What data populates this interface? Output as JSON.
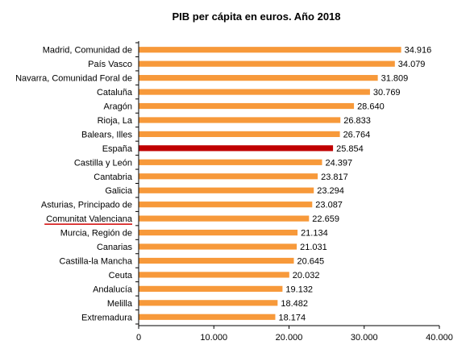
{
  "chart_data": {
    "type": "bar",
    "orientation": "horizontal",
    "title": "PIB per cápita en euros. Año 2018",
    "xlabel": "",
    "ylabel": "",
    "xlim": [
      0,
      40000
    ],
    "ticks": [
      {
        "value": 0,
        "label": "0"
      },
      {
        "value": 10000,
        "label": "10.000"
      },
      {
        "value": 20000,
        "label": "20.000"
      },
      {
        "value": 30000,
        "label": "30.000"
      },
      {
        "value": 40000,
        "label": "40.000"
      }
    ],
    "grid": false,
    "legend": "none",
    "colors": {
      "bar": "#F7993A",
      "highlight_bar": "#C00000",
      "underline": "#D00000",
      "axis": "#000000"
    },
    "highlight_category": "España",
    "underlined_category": "Comunitat Valenciana",
    "categories": [
      "Madrid, Comunidad de",
      "País Vasco",
      "Navarra, Comunidad Foral de",
      "Cataluña",
      "Aragón",
      "Rioja, La",
      "Balears, Illes",
      "España",
      "Castilla y León",
      "Cantabria",
      "Galicia",
      "Asturias, Principado de",
      "Comunitat Valenciana",
      "Murcia, Región de",
      "Canarias",
      "Castilla-la Mancha",
      "Ceuta",
      "Andalucía",
      "Melilla",
      "Extremadura"
    ],
    "values": [
      34916,
      34079,
      31809,
      30769,
      28640,
      26833,
      26764,
      25854,
      24397,
      23817,
      23294,
      23087,
      22659,
      21134,
      21031,
      20645,
      20032,
      19132,
      18482,
      18174
    ],
    "value_labels": [
      "34.916",
      "34.079",
      "31.809",
      "30.769",
      "28.640",
      "26.833",
      "26.764",
      "25.854",
      "24.397",
      "23.817",
      "23.294",
      "23.087",
      "22.659",
      "21.134",
      "21.031",
      "20.645",
      "20.032",
      "19.132",
      "18.482",
      "18.174"
    ]
  }
}
